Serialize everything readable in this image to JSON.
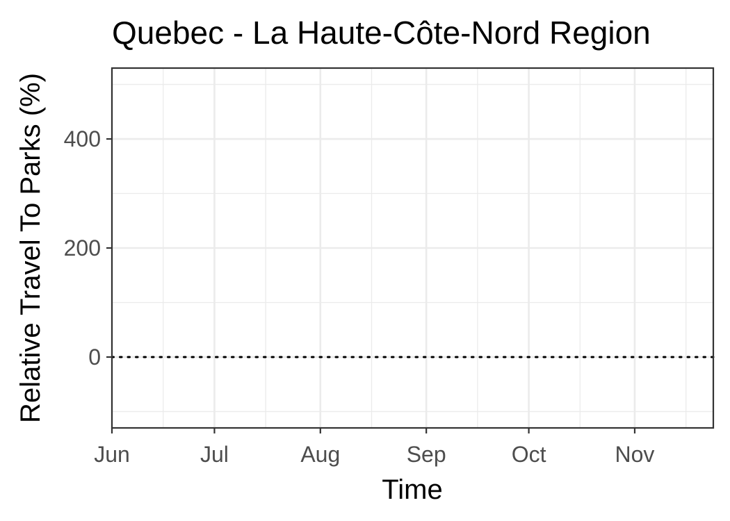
{
  "chart_data": {
    "type": "line",
    "title": "Quebec - La Haute-Côte-Nord Region",
    "xlabel": "Time",
    "ylabel": "Relative Travel To Parks (%)",
    "x_axis": {
      "type": "date",
      "range": [
        "2020-06-01",
        "2020-11-24"
      ],
      "major_ticks": [
        {
          "date": "2020-06-01",
          "label": "Jun"
        },
        {
          "date": "2020-07-01",
          "label": "Jul"
        },
        {
          "date": "2020-08-01",
          "label": "Aug"
        },
        {
          "date": "2020-09-01",
          "label": "Sep"
        },
        {
          "date": "2020-10-01",
          "label": "Oct"
        },
        {
          "date": "2020-11-01",
          "label": "Nov"
        }
      ],
      "minor_ticks": [
        "2020-06-16",
        "2020-07-16",
        "2020-08-16",
        "2020-09-16",
        "2020-10-16",
        "2020-11-16"
      ]
    },
    "y_axis": {
      "range": [
        -130,
        530
      ],
      "major_ticks": [
        0,
        200,
        400
      ],
      "minor_ticks": [
        -100,
        100,
        300,
        500
      ]
    },
    "reference_line": {
      "y": 0,
      "style": "dotted",
      "color": "#000000"
    },
    "series": [],
    "grid": true,
    "legend": "none"
  }
}
